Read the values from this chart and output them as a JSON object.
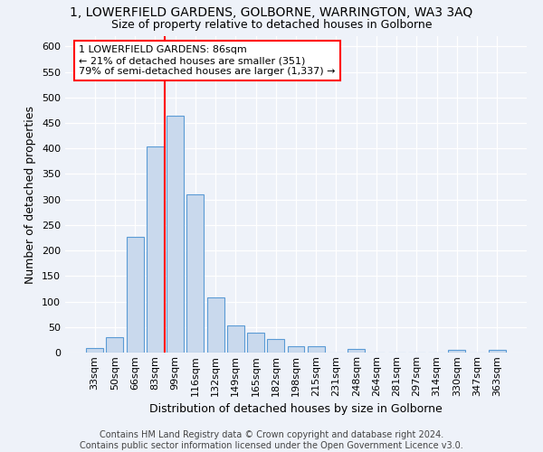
{
  "title_line1": "1, LOWERFIELD GARDENS, GOLBORNE, WARRINGTON, WA3 3AQ",
  "title_line2": "Size of property relative to detached houses in Golborne",
  "xlabel": "Distribution of detached houses by size in Golborne",
  "ylabel": "Number of detached properties",
  "categories": [
    "33sqm",
    "50sqm",
    "66sqm",
    "83sqm",
    "99sqm",
    "116sqm",
    "132sqm",
    "149sqm",
    "165sqm",
    "182sqm",
    "198sqm",
    "215sqm",
    "231sqm",
    "248sqm",
    "264sqm",
    "281sqm",
    "297sqm",
    "314sqm",
    "330sqm",
    "347sqm",
    "363sqm"
  ],
  "values": [
    8,
    30,
    227,
    403,
    465,
    310,
    108,
    53,
    39,
    27,
    13,
    12,
    0,
    7,
    0,
    0,
    0,
    0,
    6,
    0,
    6
  ],
  "bar_color": "#c9d9ed",
  "bar_edge_color": "#5b9bd5",
  "vline_color": "red",
  "vline_pos": 3.5,
  "annotation_text": "1 LOWERFIELD GARDENS: 86sqm\n← 21% of detached houses are smaller (351)\n79% of semi-detached houses are larger (1,337) →",
  "annotation_box_color": "white",
  "annotation_box_edge_color": "red",
  "ylim": [
    0,
    620
  ],
  "yticks": [
    0,
    50,
    100,
    150,
    200,
    250,
    300,
    350,
    400,
    450,
    500,
    550,
    600
  ],
  "footer_line1": "Contains HM Land Registry data © Crown copyright and database right 2024.",
  "footer_line2": "Contains public sector information licensed under the Open Government Licence v3.0.",
  "background_color": "#eef2f9",
  "grid_color": "white",
  "title_fontsize": 10,
  "subtitle_fontsize": 9,
  "axis_label_fontsize": 9,
  "tick_fontsize": 8,
  "footer_fontsize": 7,
  "annotation_fontsize": 8
}
